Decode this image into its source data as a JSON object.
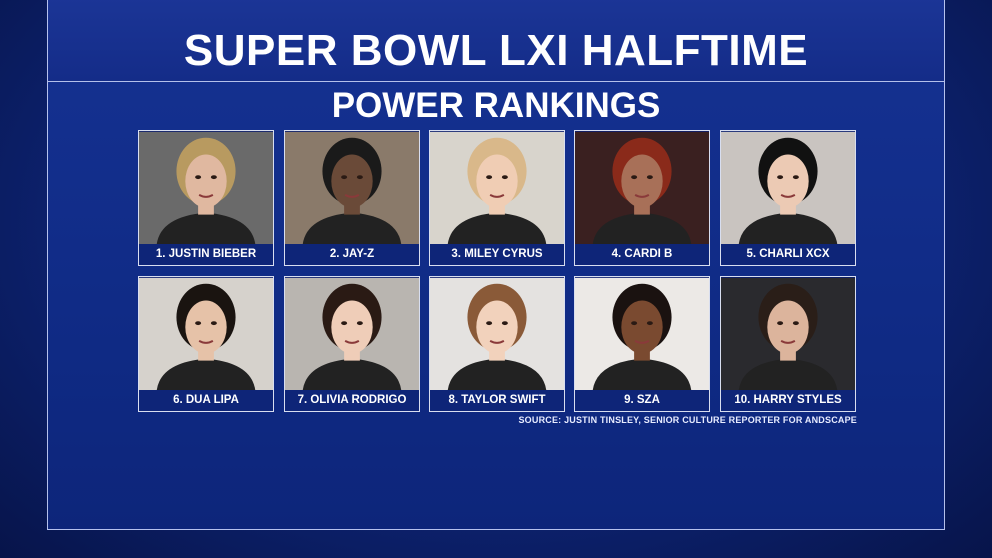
{
  "header": {
    "title": "SUPER BOWL LXI HALFTIME",
    "subtitle": "POWER RANKINGS"
  },
  "rankings": [
    "1. JUSTIN BIEBER",
    "2. JAY-Z",
    "3. MILEY CYRUS",
    "4. CARDI B",
    "5. CHARLI XCX",
    "6. DUA LIPA",
    "7. OLIVIA RODRIGO",
    "8. TAYLOR SWIFT",
    "9. SZA",
    "10. HARRY STYLES"
  ],
  "source": "SOURCE: JUSTIN TINSLEY, SENIOR CULTURE REPORTER FOR ANDSCAPE"
}
